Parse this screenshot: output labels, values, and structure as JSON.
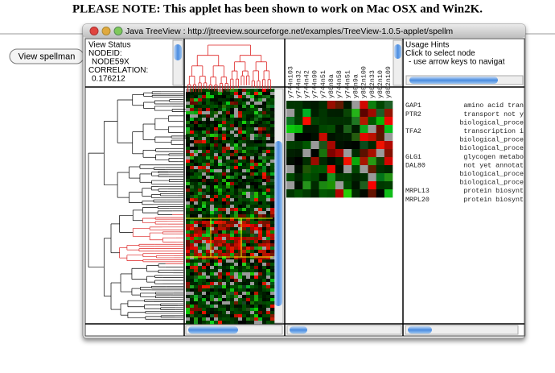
{
  "header": {
    "note": "PLEASE NOTE: This applet has been shown to work on Mac OSX and Win2K."
  },
  "button": {
    "label": "View spellman"
  },
  "window": {
    "title": "Java TreeView : http://jtreeview.sourceforge.net/examples/TreeView-1.0.5-applet/spellm"
  },
  "view_status": {
    "lines": [
      "View Status",
      "NODEID:",
      "NODE59X",
      "CORRELATION:",
      "0.176212"
    ]
  },
  "usage_hints": {
    "lines": [
      "Usage Hints",
      "Click to select node",
      "- use arrow keys to navigat"
    ]
  },
  "columns": [
    "y744n103",
    "y744n32",
    "y744n42",
    "y744n90",
    "y744n51",
    "y80n8a",
    "y744n58",
    "y744n51",
    "y80n9a",
    "y802n100",
    "y802n33",
    "y802n10",
    "y802n109"
  ],
  "genes": [
    {
      "name": "GAP1",
      "desc": "amino acid tran"
    },
    {
      "name": "PTR2",
      "desc": "transport not y"
    },
    {
      "desc": "biological_proce"
    },
    {
      "name": "TFA2",
      "desc": "transcription i"
    },
    {
      "desc": "biological_proce"
    },
    {
      "desc": "biological_proce"
    },
    {
      "name": "GLG1",
      "desc": "glycogen metabo"
    },
    {
      "name": "DAL80",
      "desc": "not yet annotat"
    },
    {
      "desc": "biological_proce"
    },
    {
      "desc": "biological_proce"
    },
    {
      "name": "MRPL13",
      "desc": "protein biosynt"
    },
    {
      "name": "MRPL20",
      "desc": "protein biosynt"
    }
  ]
}
